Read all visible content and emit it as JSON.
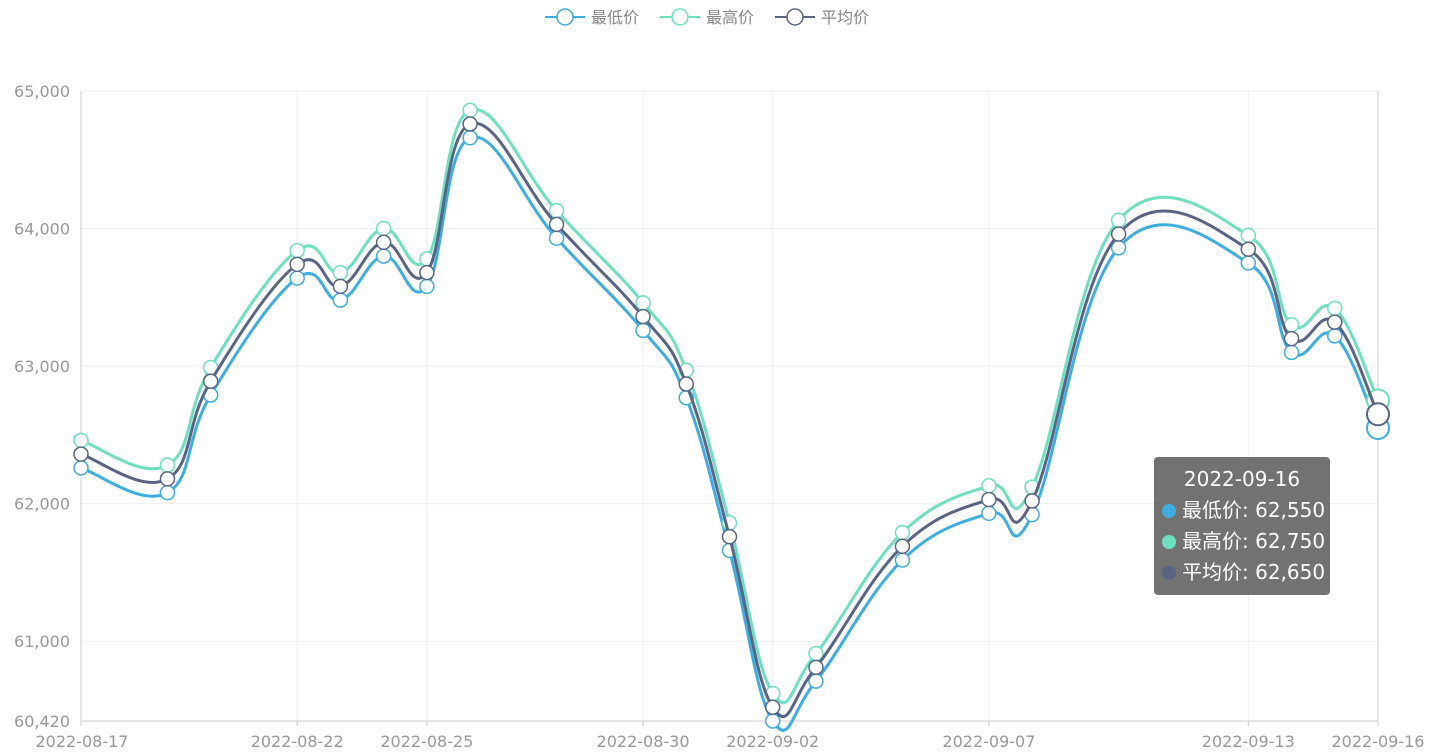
{
  "chart_data": {
    "type": "line",
    "smooth": true,
    "x": [
      "2022-08-17",
      "2022-08-19",
      "2022-08-20",
      "2022-08-22",
      "2022-08-23",
      "2022-08-24",
      "2022-08-25",
      "2022-08-26",
      "2022-08-28",
      "2022-08-30",
      "2022-08-31",
      "2022-09-01",
      "2022-09-02",
      "2022-09-03",
      "2022-09-05",
      "2022-09-07",
      "2022-09-08",
      "2022-09-10",
      "2022-09-13",
      "2022-09-14",
      "2022-09-15",
      "2022-09-16"
    ],
    "xticks": [
      "2022-08-17",
      "2022-08-22",
      "2022-08-25",
      "2022-08-30",
      "2022-09-02",
      "2022-09-07",
      "2022-09-13",
      "2022-09-16"
    ],
    "yticks": [
      60420,
      61000,
      62000,
      63000,
      64000,
      65000
    ],
    "ytick_labels": [
      "60,420",
      "61,000",
      "62,000",
      "63,000",
      "64,000",
      "65,000"
    ],
    "ylim": [
      60420,
      65000
    ],
    "grid": true,
    "legend_position": "top-center",
    "series": [
      {
        "name": "最低价",
        "color": "#3eaee0",
        "values": [
          62260,
          62080,
          62790,
          63640,
          63480,
          63800,
          63580,
          64660,
          63930,
          63260,
          62770,
          61660,
          60420,
          60710,
          61590,
          61930,
          61920,
          63860,
          63750,
          63100,
          63220,
          62550
        ]
      },
      {
        "name": "最高价",
        "color": "#6ee0c0",
        "values": [
          62460,
          62280,
          62990,
          63840,
          63680,
          64000,
          63780,
          64860,
          64130,
          63460,
          62970,
          61860,
          60620,
          60910,
          61790,
          62130,
          62120,
          64060,
          63950,
          63300,
          63420,
          62750
        ]
      },
      {
        "name": "平均价",
        "color": "#5a6585",
        "values": [
          62360,
          62180,
          62890,
          63740,
          63580,
          63900,
          63680,
          64760,
          64030,
          63360,
          62870,
          61760,
          60520,
          60810,
          61690,
          62030,
          62020,
          63960,
          63850,
          63200,
          63320,
          62650
        ]
      }
    ]
  },
  "tooltip": {
    "title": "2022-09-16",
    "rows": [
      {
        "label": "最低价: 62,550",
        "color": "#3eaee0"
      },
      {
        "label": "最高价: 62,750",
        "color": "#6ee0c0"
      },
      {
        "label": "平均价: 62,650",
        "color": "#5a6585"
      }
    ]
  }
}
